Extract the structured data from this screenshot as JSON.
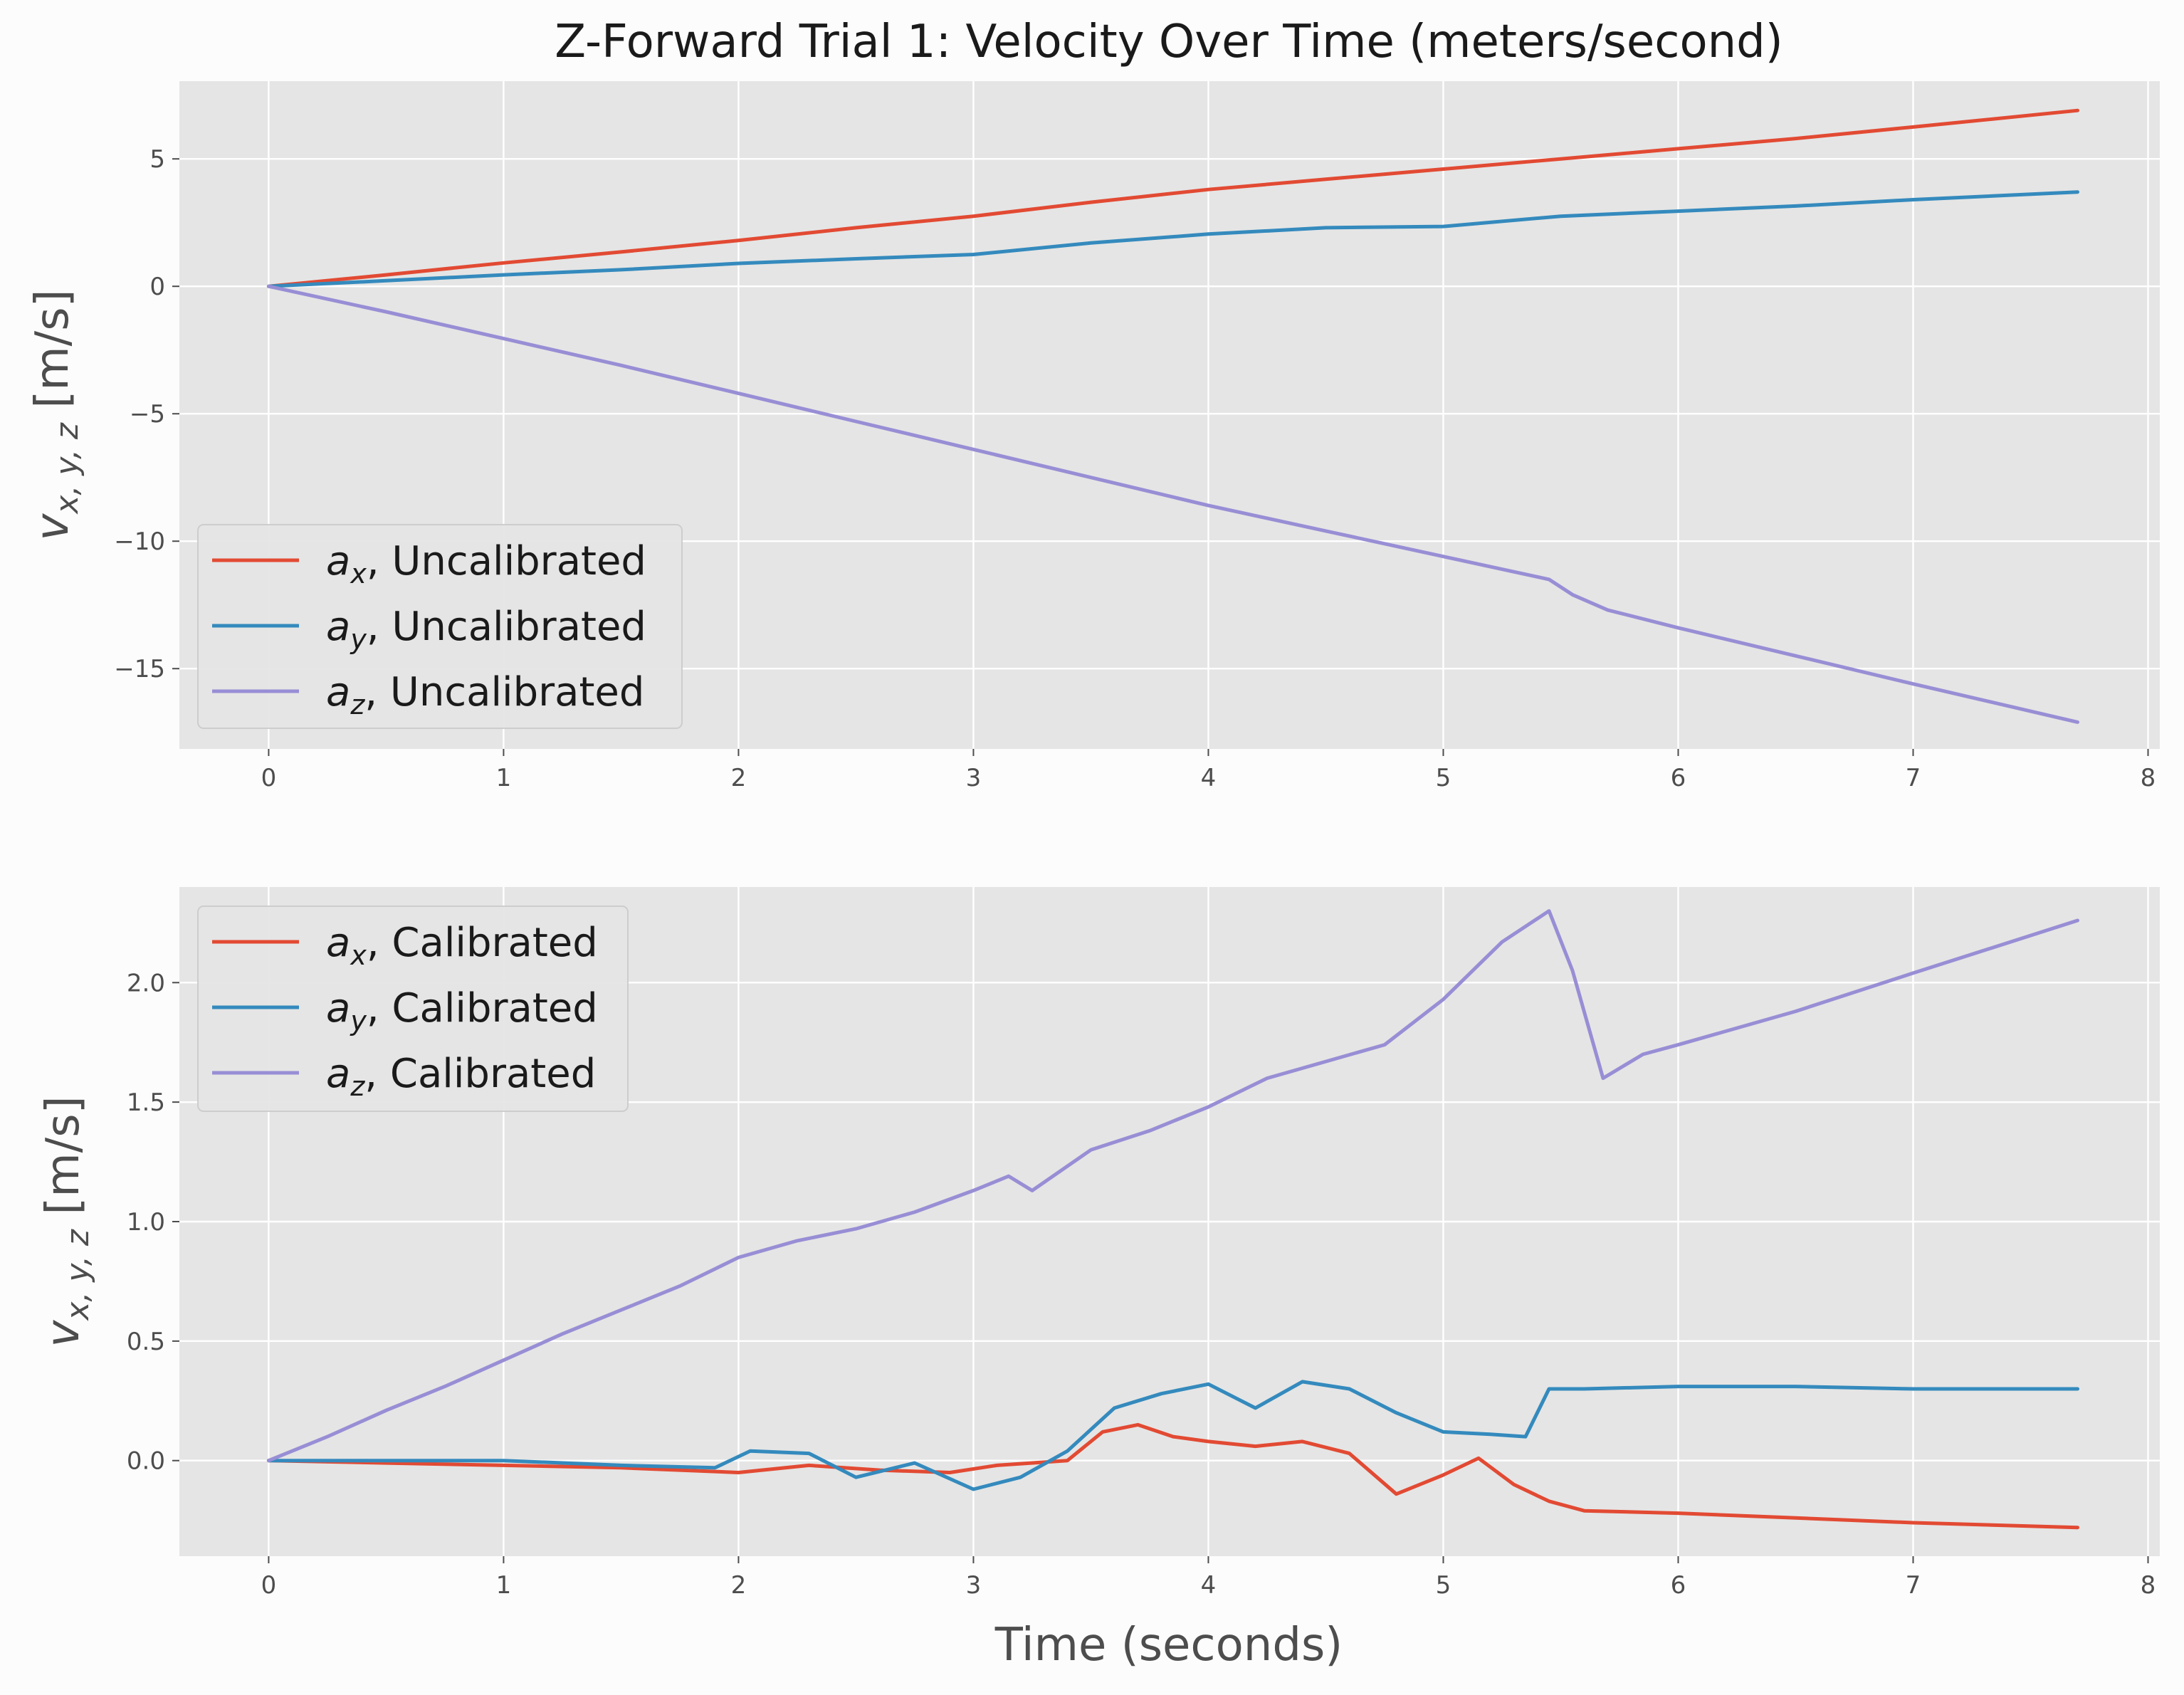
{
  "title": "Z-Forward Trial 1: Velocity Over Time (meters/second)",
  "xlabel": "Time (seconds)",
  "colors": {
    "background": "#e5e5e5",
    "grid": "#ffffff",
    "ax": "#e24a33",
    "ay": "#348abd",
    "az": "#988ed5"
  },
  "chart_data": [
    {
      "type": "line",
      "ylabel_main": "v",
      "ylabel_sub": "x, y, z",
      "ylabel_unit": "[m/s]",
      "xlim": [
        -0.38,
        8.05
      ],
      "ylim": [
        -18.15,
        8.05
      ],
      "xticks": [
        0,
        1,
        2,
        3,
        4,
        5,
        6,
        7,
        8
      ],
      "xtick_labels": [
        "0",
        "1",
        "2",
        "3",
        "4",
        "5",
        "6",
        "7",
        "8"
      ],
      "yticks": [
        5,
        0,
        -5,
        -10,
        -15
      ],
      "ytick_labels": [
        "5",
        "0",
        "−5",
        "−10",
        "−15"
      ],
      "legend_position": "lower-left",
      "series": [
        {
          "name": "a_x, Uncalibrated",
          "legend_main": "a",
          "legend_sub": "x",
          "legend_rest": ", Uncalibrated",
          "color_key": "ax",
          "x": [
            0,
            0.5,
            1,
            1.5,
            2,
            2.5,
            3,
            3.5,
            4,
            4.5,
            5,
            5.5,
            6,
            6.5,
            7,
            7.7
          ],
          "y": [
            0,
            0.45,
            0.92,
            1.35,
            1.8,
            2.3,
            2.75,
            3.3,
            3.8,
            4.2,
            4.6,
            5.0,
            5.4,
            5.8,
            6.25,
            6.9
          ]
        },
        {
          "name": "a_y, Uncalibrated",
          "legend_main": "a",
          "legend_sub": "y",
          "legend_rest": ", Uncalibrated",
          "color_key": "ay",
          "x": [
            0,
            0.5,
            1,
            1.5,
            2,
            2.5,
            3,
            3.5,
            4,
            4.5,
            5,
            5.5,
            6,
            6.5,
            7,
            7.7
          ],
          "y": [
            0,
            0.22,
            0.45,
            0.65,
            0.9,
            1.08,
            1.25,
            1.7,
            2.05,
            2.3,
            2.35,
            2.75,
            2.95,
            3.15,
            3.4,
            3.7
          ]
        },
        {
          "name": "a_z, Uncalibrated",
          "legend_main": "a",
          "legend_sub": "z",
          "legend_rest": ", Uncalibrated",
          "color_key": "az",
          "x": [
            0,
            0.5,
            1,
            1.5,
            2,
            2.5,
            3,
            3.5,
            4,
            4.5,
            5,
            5.45,
            5.55,
            5.7,
            6,
            6.5,
            7,
            7.7
          ],
          "y": [
            0,
            -1.0,
            -2.05,
            -3.1,
            -4.2,
            -5.3,
            -6.4,
            -7.5,
            -8.6,
            -9.6,
            -10.6,
            -11.5,
            -12.1,
            -12.7,
            -13.4,
            -14.5,
            -15.6,
            -17.1
          ]
        }
      ]
    },
    {
      "type": "line",
      "ylabel_main": "v",
      "ylabel_sub": "x, y, z",
      "ylabel_unit": "[m/s]",
      "xlim": [
        -0.38,
        8.05
      ],
      "ylim": [
        -0.4,
        2.4
      ],
      "xticks": [
        0,
        1,
        2,
        3,
        4,
        5,
        6,
        7,
        8
      ],
      "xtick_labels": [
        "0",
        "1",
        "2",
        "3",
        "4",
        "5",
        "6",
        "7",
        "8"
      ],
      "yticks": [
        2.0,
        1.5,
        1.0,
        0.5,
        0.0
      ],
      "ytick_labels": [
        "2.0",
        "1.5",
        "1.0",
        "0.5",
        "0.0"
      ],
      "legend_position": "upper-left",
      "series": [
        {
          "name": "a_x, Calibrated",
          "legend_main": "a",
          "legend_sub": "x",
          "legend_rest": ", Calibrated",
          "color_key": "ax",
          "x": [
            0,
            0.5,
            1,
            1.5,
            2,
            2.3,
            2.6,
            2.9,
            3.1,
            3.4,
            3.55,
            3.7,
            3.85,
            4.0,
            4.2,
            4.4,
            4.6,
            4.8,
            5.0,
            5.15,
            5.3,
            5.45,
            5.6,
            6.0,
            6.5,
            7.0,
            7.7
          ],
          "y": [
            0,
            -0.01,
            -0.02,
            -0.03,
            -0.05,
            -0.02,
            -0.04,
            -0.05,
            -0.02,
            0.0,
            0.12,
            0.15,
            0.1,
            0.08,
            0.06,
            0.08,
            0.03,
            -0.14,
            -0.06,
            0.01,
            -0.1,
            -0.17,
            -0.21,
            -0.22,
            -0.24,
            -0.26,
            -0.28
          ]
        },
        {
          "name": "a_y, Calibrated",
          "legend_main": "a",
          "legend_sub": "y",
          "legend_rest": ", Calibrated",
          "color_key": "ay",
          "x": [
            0,
            0.5,
            1,
            1.5,
            1.9,
            2.05,
            2.3,
            2.5,
            2.75,
            3.0,
            3.2,
            3.4,
            3.6,
            3.8,
            4.0,
            4.2,
            4.4,
            4.6,
            4.8,
            5.0,
            5.2,
            5.35,
            5.45,
            5.6,
            6.0,
            6.5,
            7.0,
            7.7
          ],
          "y": [
            0,
            0.0,
            0.0,
            -0.02,
            -0.03,
            0.04,
            0.03,
            -0.07,
            -0.01,
            -0.12,
            -0.07,
            0.04,
            0.22,
            0.28,
            0.32,
            0.22,
            0.33,
            0.3,
            0.2,
            0.12,
            0.11,
            0.1,
            0.3,
            0.3,
            0.31,
            0.31,
            0.3,
            0.3
          ]
        },
        {
          "name": "a_z, Calibrated",
          "legend_main": "a",
          "legend_sub": "z",
          "legend_rest": ", Calibrated",
          "color_key": "az",
          "x": [
            0,
            0.25,
            0.5,
            0.75,
            1.0,
            1.25,
            1.5,
            1.75,
            2.0,
            2.25,
            2.5,
            2.75,
            3.0,
            3.15,
            3.25,
            3.5,
            3.75,
            4.0,
            4.25,
            4.5,
            4.75,
            5.0,
            5.25,
            5.45,
            5.55,
            5.68,
            5.85,
            6.0,
            6.5,
            7.0,
            7.7
          ],
          "y": [
            0,
            0.1,
            0.21,
            0.31,
            0.42,
            0.53,
            0.63,
            0.73,
            0.85,
            0.92,
            0.97,
            1.04,
            1.13,
            1.19,
            1.13,
            1.3,
            1.38,
            1.48,
            1.6,
            1.67,
            1.74,
            1.93,
            2.17,
            2.3,
            2.05,
            1.6,
            1.7,
            1.74,
            1.88,
            2.04,
            2.26
          ]
        }
      ]
    }
  ]
}
